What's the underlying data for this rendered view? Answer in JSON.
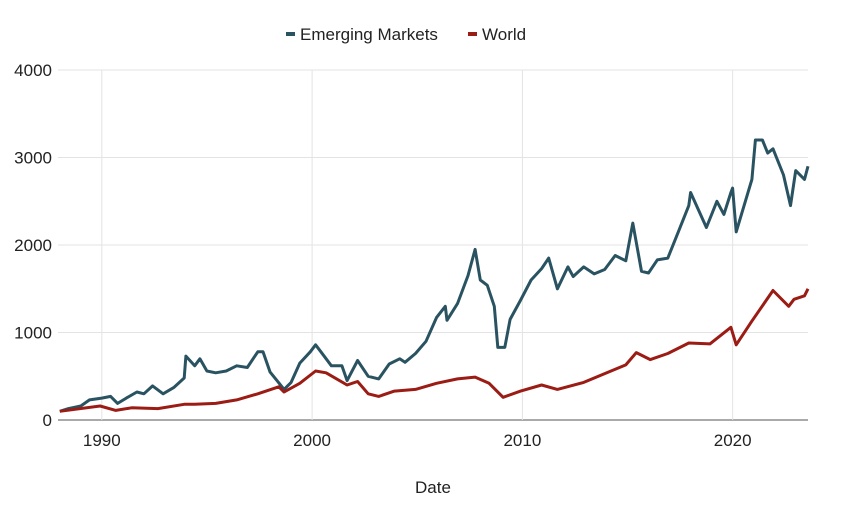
{
  "chart_data": {
    "type": "line",
    "title": "",
    "xlabel": "Date",
    "ylabel": "",
    "ylim": [
      0,
      4000
    ],
    "xlim": [
      "1987-12",
      "2023-08"
    ],
    "yticks": [
      "0",
      "1000",
      "2000",
      "3000",
      "4000"
    ],
    "xticks": [
      "1990",
      "2000",
      "2010",
      "2020"
    ],
    "grid": true,
    "legend": "top",
    "series": [
      {
        "name": "Emerging Markets",
        "color": "#2a5362",
        "points": [
          [
            "1988-01",
            100
          ],
          [
            "1988-06",
            130
          ],
          [
            "1989-01",
            160
          ],
          [
            "1989-06",
            230
          ],
          [
            "1990-01",
            250
          ],
          [
            "1990-06",
            270
          ],
          [
            "1990-10",
            190
          ],
          [
            "1991-03",
            250
          ],
          [
            "1991-09",
            320
          ],
          [
            "1992-01",
            300
          ],
          [
            "1992-06",
            390
          ],
          [
            "1992-12",
            300
          ],
          [
            "1993-06",
            370
          ],
          [
            "1993-12",
            480
          ],
          [
            "1994-01",
            730
          ],
          [
            "1994-06",
            620
          ],
          [
            "1994-09",
            700
          ],
          [
            "1995-01",
            560
          ],
          [
            "1995-06",
            540
          ],
          [
            "1995-12",
            560
          ],
          [
            "1996-06",
            620
          ],
          [
            "1996-12",
            600
          ],
          [
            "1997-06",
            780
          ],
          [
            "1997-09",
            780
          ],
          [
            "1998-01",
            550
          ],
          [
            "1998-09",
            350
          ],
          [
            "1999-01",
            430
          ],
          [
            "1999-06",
            650
          ],
          [
            "1999-12",
            780
          ],
          [
            "2000-03",
            860
          ],
          [
            "2000-06",
            780
          ],
          [
            "2000-12",
            620
          ],
          [
            "2001-06",
            620
          ],
          [
            "2001-09",
            450
          ],
          [
            "2002-03",
            680
          ],
          [
            "2002-09",
            500
          ],
          [
            "2003-03",
            470
          ],
          [
            "2003-09",
            640
          ],
          [
            "2004-03",
            700
          ],
          [
            "2004-06",
            660
          ],
          [
            "2004-12",
            760
          ],
          [
            "2005-06",
            900
          ],
          [
            "2005-12",
            1170
          ],
          [
            "2006-05",
            1300
          ],
          [
            "2006-06",
            1140
          ],
          [
            "2006-12",
            1330
          ],
          [
            "2007-06",
            1650
          ],
          [
            "2007-10",
            1950
          ],
          [
            "2008-01",
            1600
          ],
          [
            "2008-05",
            1540
          ],
          [
            "2008-09",
            1300
          ],
          [
            "2008-11",
            830
          ],
          [
            "2009-03",
            830
          ],
          [
            "2009-06",
            1150
          ],
          [
            "2009-12",
            1370
          ],
          [
            "2010-06",
            1600
          ],
          [
            "2010-12",
            1730
          ],
          [
            "2011-04",
            1850
          ],
          [
            "2011-09",
            1500
          ],
          [
            "2012-03",
            1750
          ],
          [
            "2012-06",
            1640
          ],
          [
            "2012-12",
            1750
          ],
          [
            "2013-06",
            1670
          ],
          [
            "2013-12",
            1720
          ],
          [
            "2014-06",
            1880
          ],
          [
            "2014-12",
            1820
          ],
          [
            "2015-04",
            2250
          ],
          [
            "2015-09",
            1700
          ],
          [
            "2016-01",
            1680
          ],
          [
            "2016-06",
            1830
          ],
          [
            "2016-12",
            1850
          ],
          [
            "2017-06",
            2150
          ],
          [
            "2017-12",
            2450
          ],
          [
            "2018-01",
            2600
          ],
          [
            "2018-10",
            2200
          ],
          [
            "2019-04",
            2500
          ],
          [
            "2019-08",
            2350
          ],
          [
            "2019-12",
            2600
          ],
          [
            "2020-01",
            2650
          ],
          [
            "2020-03",
            2150
          ],
          [
            "2020-12",
            2750
          ],
          [
            "2021-02",
            3200
          ],
          [
            "2021-06",
            3200
          ],
          [
            "2021-09",
            3050
          ],
          [
            "2021-12",
            3100
          ],
          [
            "2022-06",
            2800
          ],
          [
            "2022-10",
            2450
          ],
          [
            "2023-01",
            2850
          ],
          [
            "2023-06",
            2750
          ],
          [
            "2023-08",
            2900
          ]
        ]
      },
      {
        "name": "World",
        "color": "#9b1c14",
        "points": [
          [
            "1988-01",
            100
          ],
          [
            "1989-12",
            160
          ],
          [
            "1990-09",
            110
          ],
          [
            "1991-06",
            140
          ],
          [
            "1992-09",
            130
          ],
          [
            "1993-12",
            180
          ],
          [
            "1994-06",
            180
          ],
          [
            "1995-06",
            190
          ],
          [
            "1996-06",
            230
          ],
          [
            "1997-06",
            300
          ],
          [
            "1998-06",
            380
          ],
          [
            "1998-09",
            320
          ],
          [
            "1999-06",
            420
          ],
          [
            "2000-03",
            560
          ],
          [
            "2000-09",
            540
          ],
          [
            "2001-09",
            400
          ],
          [
            "2002-03",
            440
          ],
          [
            "2002-09",
            300
          ],
          [
            "2003-03",
            270
          ],
          [
            "2003-12",
            330
          ],
          [
            "2004-12",
            350
          ],
          [
            "2005-12",
            420
          ],
          [
            "2006-12",
            470
          ],
          [
            "2007-10",
            490
          ],
          [
            "2008-06",
            420
          ],
          [
            "2009-02",
            260
          ],
          [
            "2009-12",
            330
          ],
          [
            "2010-12",
            400
          ],
          [
            "2011-09",
            350
          ],
          [
            "2012-12",
            430
          ],
          [
            "2013-12",
            530
          ],
          [
            "2014-12",
            630
          ],
          [
            "2015-06",
            770
          ],
          [
            "2016-02",
            690
          ],
          [
            "2016-12",
            760
          ],
          [
            "2017-12",
            880
          ],
          [
            "2018-12",
            870
          ],
          [
            "2019-12",
            1060
          ],
          [
            "2020-03",
            860
          ],
          [
            "2020-12",
            1130
          ],
          [
            "2021-12",
            1480
          ],
          [
            "2022-09",
            1300
          ],
          [
            "2022-12",
            1380
          ],
          [
            "2023-06",
            1420
          ],
          [
            "2023-08",
            1500
          ]
        ]
      }
    ]
  }
}
